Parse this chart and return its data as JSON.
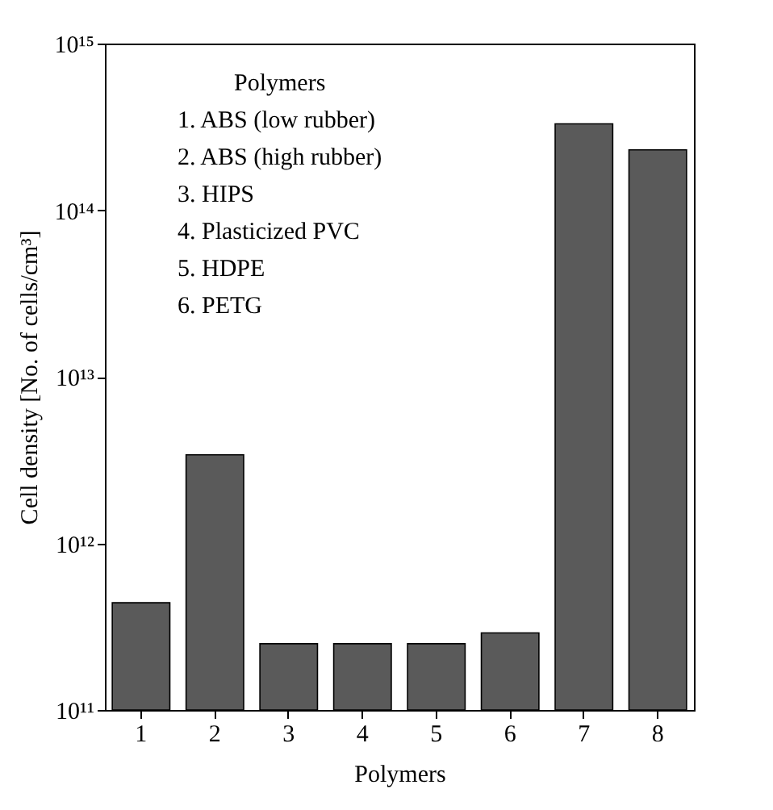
{
  "chart_data": {
    "type": "bar",
    "xlabel": "Polymers",
    "ylabel": "Cell density [No. of cells/cm³]",
    "categories": [
      "1",
      "2",
      "3",
      "4",
      "5",
      "6",
      "7",
      "8"
    ],
    "values": [
      440000000000.0,
      3400000000000.0,
      250000000000.0,
      250000000000.0,
      250000000000.0,
      290000000000.0,
      330000000000000.0,
      230000000000000.0
    ],
    "color": "#5a5a5a",
    "log": true,
    "ylim": [
      100000000000.0,
      1000000000000000.0
    ],
    "yticks": [
      {
        "value": 100000000000.0,
        "label": "10¹¹"
      },
      {
        "value": 1000000000000.0,
        "label": "10¹²"
      },
      {
        "value": 10000000000000.0,
        "label": "10¹³"
      },
      {
        "value": 100000000000000.0,
        "label": "10¹⁴"
      },
      {
        "value": 1000000000000000.0,
        "label": "10¹⁵"
      }
    ],
    "grid": false,
    "annotations": [
      "Polymers",
      "1. ABS (low rubber)",
      "2. ABS (high rubber)",
      "3. HIPS",
      "4. Plasticized PVC",
      "5. HDPE",
      "6. PETG"
    ]
  }
}
